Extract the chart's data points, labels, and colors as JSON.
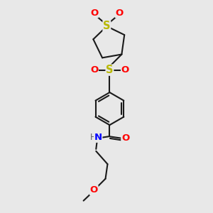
{
  "background_color": "#e8e8e8",
  "bond_color": "#1a1a1a",
  "S_color": "#b8b800",
  "O_color": "#ff0000",
  "N_color": "#0000ff",
  "H_color": "#606060",
  "figsize": [
    3.0,
    3.0
  ],
  "dpi": 100,
  "xlim": [
    0,
    10
  ],
  "ylim": [
    0,
    10
  ]
}
